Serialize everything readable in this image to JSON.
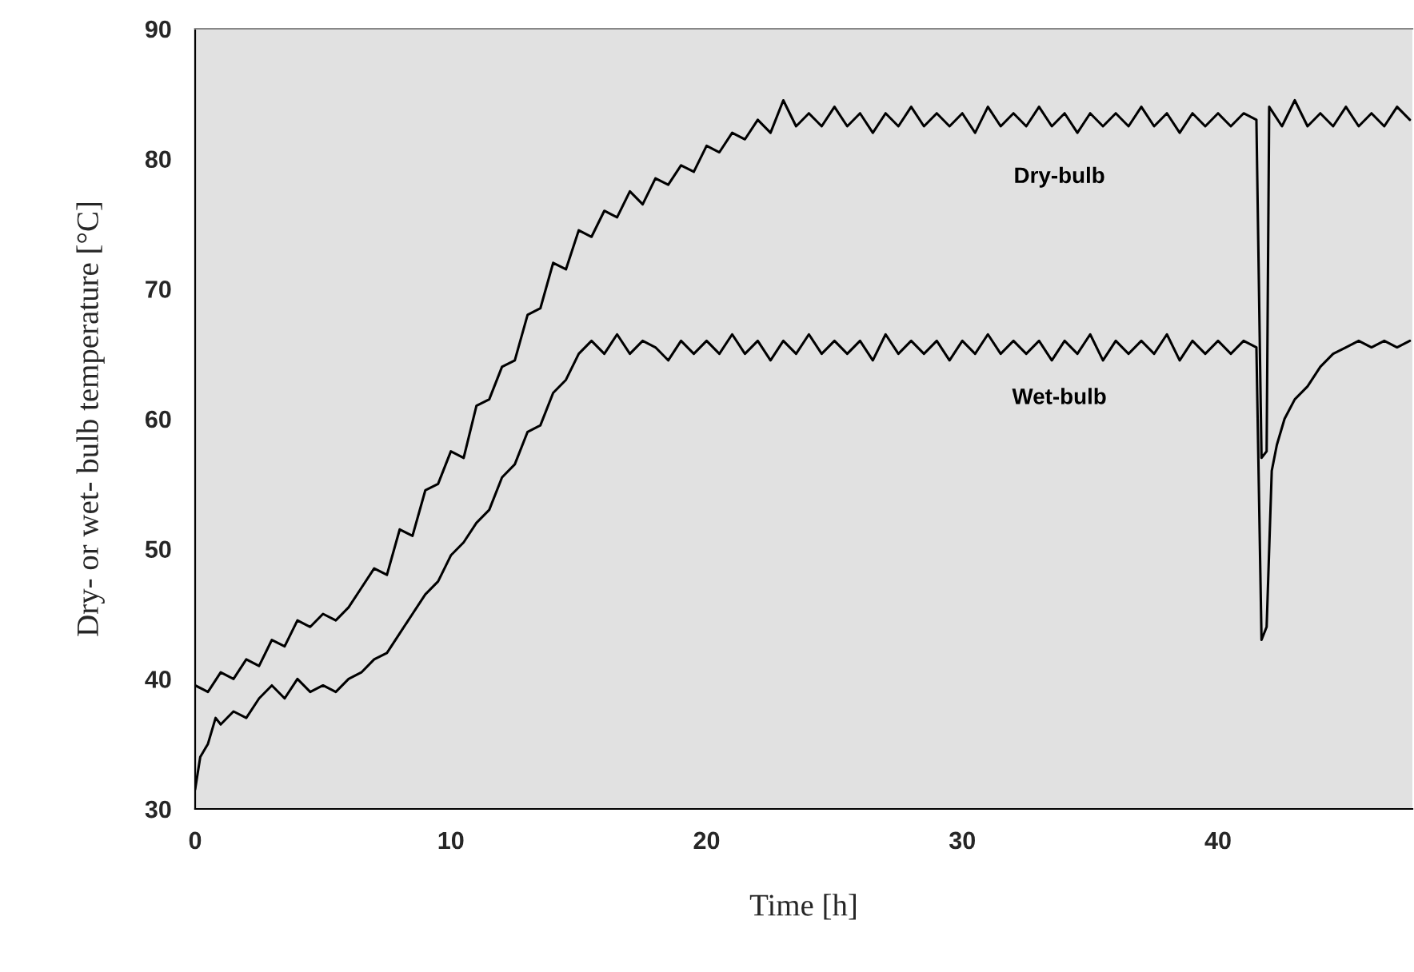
{
  "chart_data": {
    "type": "line",
    "xlabel": "Time [h]",
    "ylabel": "Dry- or wet- bulb temperature [°C]",
    "xlim": [
      0,
      47.6
    ],
    "ylim": [
      30,
      90
    ],
    "xticks": [
      0,
      10,
      20,
      30,
      40
    ],
    "yticks": [
      30,
      40,
      50,
      60,
      70,
      80,
      90
    ],
    "grid": false,
    "legend": false,
    "marker": "none",
    "line_style": "solid",
    "series": [
      {
        "name": "Dry-bulb",
        "color": "#000000",
        "x": [
          0,
          0.5,
          1,
          1.5,
          2,
          2.5,
          3,
          3.5,
          4,
          4.5,
          5,
          5.5,
          6,
          6.5,
          7,
          7.5,
          8,
          8.5,
          9,
          9.5,
          10,
          10.5,
          11,
          11.5,
          12,
          12.5,
          13,
          13.5,
          14,
          14.5,
          15,
          15.5,
          16,
          16.5,
          17,
          17.5,
          18,
          18.5,
          19,
          19.5,
          20,
          20.5,
          21,
          21.5,
          22,
          22.5,
          23,
          23.5,
          24,
          24.5,
          25,
          25.5,
          26,
          26.5,
          27,
          27.5,
          28,
          28.5,
          29,
          29.5,
          30,
          30.5,
          31,
          31.5,
          32,
          32.5,
          33,
          33.5,
          34,
          34.5,
          35,
          35.5,
          36,
          36.5,
          37,
          37.5,
          38,
          38.5,
          39,
          39.5,
          40,
          40.5,
          41,
          41.5,
          41.7,
          41.9,
          42,
          42.5,
          43,
          43.5,
          44,
          44.5,
          45,
          45.5,
          46,
          46.5,
          47,
          47.5
        ],
        "values": [
          39.5,
          39,
          40.5,
          40,
          41.5,
          41,
          43,
          42.5,
          44.5,
          44,
          45,
          44.5,
          45.5,
          47,
          48.5,
          48,
          51.5,
          51,
          54.5,
          55,
          57.5,
          57,
          61,
          61.5,
          64,
          64.5,
          68,
          68.5,
          72,
          71.5,
          74.5,
          74,
          76,
          75.5,
          77.5,
          76.5,
          78.5,
          78,
          79.5,
          79,
          81,
          80.5,
          82,
          81.5,
          83,
          82,
          84.5,
          82.5,
          83.5,
          82.5,
          84,
          82.5,
          83.5,
          82,
          83.5,
          82.5,
          84,
          82.5,
          83.5,
          82.5,
          83.5,
          82,
          84,
          82.5,
          83.5,
          82.5,
          84,
          82.5,
          83.5,
          82,
          83.5,
          82.5,
          83.5,
          82.5,
          84,
          82.5,
          83.5,
          82,
          83.5,
          82.5,
          83.5,
          82.5,
          83.5,
          83,
          57,
          57.5,
          84,
          82.5,
          84.5,
          82.5,
          83.5,
          82.5,
          84,
          82.5,
          83.5,
          82.5,
          84,
          83
        ]
      },
      {
        "name": "Wet-bulb",
        "color": "#000000",
        "x": [
          0,
          0.2,
          0.5,
          0.8,
          1,
          1.5,
          2,
          2.5,
          3,
          3.5,
          4,
          4.5,
          5,
          5.5,
          6,
          6.5,
          7,
          7.5,
          8,
          8.5,
          9,
          9.5,
          10,
          10.5,
          11,
          11.5,
          12,
          12.5,
          13,
          13.5,
          14,
          14.5,
          15,
          15.5,
          16,
          16.5,
          17,
          17.5,
          18,
          18.5,
          19,
          19.5,
          20,
          20.5,
          21,
          21.5,
          22,
          22.5,
          23,
          23.5,
          24,
          24.5,
          25,
          25.5,
          26,
          26.5,
          27,
          27.5,
          28,
          28.5,
          29,
          29.5,
          30,
          30.5,
          31,
          31.5,
          32,
          32.5,
          33,
          33.5,
          34,
          34.5,
          35,
          35.5,
          36,
          36.5,
          37,
          37.5,
          38,
          38.5,
          39,
          39.5,
          40,
          40.5,
          41,
          41.5,
          41.7,
          41.9,
          42.1,
          42.3,
          42.6,
          43,
          43.5,
          44,
          44.5,
          45,
          45.5,
          46,
          46.5,
          47,
          47.5
        ],
        "values": [
          31.5,
          34,
          35,
          37,
          36.5,
          37.5,
          37,
          38.5,
          39.5,
          38.5,
          40,
          39,
          39.5,
          39,
          40,
          40.5,
          41.5,
          42,
          43.5,
          45,
          46.5,
          47.5,
          49.5,
          50.5,
          52,
          53,
          55.5,
          56.5,
          59,
          59.5,
          62,
          63,
          65,
          66,
          65,
          66.5,
          65,
          66,
          65.5,
          64.5,
          66,
          65,
          66,
          65,
          66.5,
          65,
          66,
          64.5,
          66,
          65,
          66.5,
          65,
          66,
          65,
          66,
          64.5,
          66.5,
          65,
          66,
          65,
          66,
          64.5,
          66,
          65,
          66.5,
          65,
          66,
          65,
          66,
          64.5,
          66,
          65,
          66.5,
          64.5,
          66,
          65,
          66,
          65,
          66.5,
          64.5,
          66,
          65,
          66,
          65,
          66,
          65.5,
          43,
          44,
          56,
          58,
          60,
          61.5,
          62.5,
          64,
          65,
          65.5,
          66,
          65.5,
          66,
          65.5,
          66
        ]
      }
    ]
  }
}
